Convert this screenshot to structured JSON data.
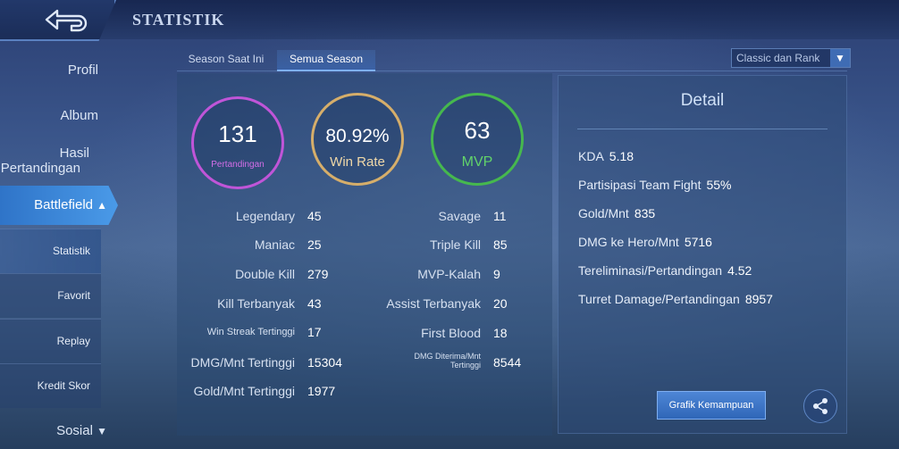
{
  "header": {
    "title": "STATISTIK"
  },
  "sidebar": {
    "items": [
      "Profil",
      "Album",
      "Hasil Pertandingan",
      "Battlefield",
      "Sosial"
    ],
    "hasil_line1": "Hasil",
    "hasil_line2": "Pertandingan",
    "sub_items": [
      "Statistik",
      "Favorit",
      "Replay",
      "Kredit Skor"
    ]
  },
  "tabs": [
    "Season Saat Ini",
    "Semua Season"
  ],
  "mode_select": {
    "value": "Classic dan Rank"
  },
  "summary": {
    "matches": {
      "value": "131",
      "label": "Pertandingan"
    },
    "winrate": {
      "value": "80.92%",
      "label": "Win Rate"
    },
    "mvp": {
      "value": "63",
      "label": "MVP"
    }
  },
  "stats_left": [
    {
      "label": "Legendary",
      "value": "45"
    },
    {
      "label": "Maniac",
      "value": "25"
    },
    {
      "label": "Double Kill",
      "value": "279"
    },
    {
      "label": "Kill Terbanyak",
      "value": "43"
    },
    {
      "label": "Win Streak Tertinggi",
      "value": "17"
    },
    {
      "label": "DMG/Mnt Tertinggi",
      "value": "15304"
    },
    {
      "label": "Gold/Mnt Tertinggi",
      "value": "1977"
    }
  ],
  "stats_right": [
    {
      "label": "Savage",
      "value": "11"
    },
    {
      "label": "Triple Kill",
      "value": "85"
    },
    {
      "label": "MVP-Kalah",
      "value": "9"
    },
    {
      "label": "Assist Terbanyak",
      "value": "20"
    },
    {
      "label": "First Blood",
      "value": "18"
    },
    {
      "label_line1": "DMG Diterima/Mnt",
      "label_line2": "Tertinggi",
      "value": "8544"
    }
  ],
  "detail": {
    "title": "Detail",
    "rows": [
      {
        "label": "KDA",
        "value": "5.18"
      },
      {
        "label": "Partisipasi Team Fight",
        "value": "55%"
      },
      {
        "label": "Gold/Mnt",
        "value": "835"
      },
      {
        "label": "DMG ke Hero/Mnt",
        "value": "5716"
      },
      {
        "label": "Tereliminasi/Pertandingan",
        "value": "4.52"
      },
      {
        "label": "Turret Damage/Pertandingan",
        "value": "8957"
      }
    ],
    "button": "Grafik Kemampuan"
  },
  "icons": [
    "back-arrow-icon",
    "chevron-up-icon",
    "chevron-down-icon",
    "share-icon"
  ],
  "colors": {
    "accent": "#3f86e0",
    "matches_ring": "#c055d8",
    "winrate_ring": "#d6ae6a",
    "mvp_ring": "#46b84e"
  }
}
